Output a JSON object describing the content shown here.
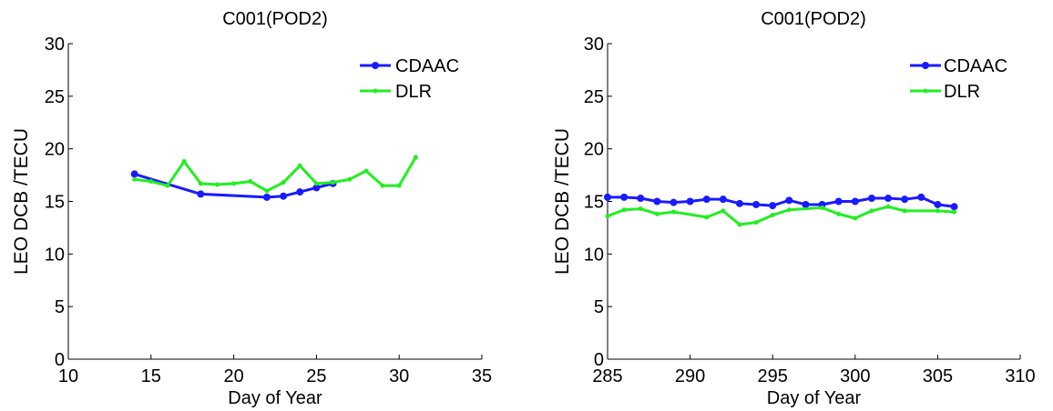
{
  "colors": {
    "cdaac": "#1a1aff",
    "dlr": "#22ee22",
    "axis": "#000000",
    "background": "#ffffff"
  },
  "chart_data": [
    {
      "type": "line",
      "title": "C001(POD2)",
      "xlabel": "Day of Year",
      "ylabel": "LEO DCB /TECU",
      "xlim": [
        10,
        35
      ],
      "ylim": [
        0,
        30
      ],
      "xticks": [
        10,
        15,
        20,
        25,
        30,
        35
      ],
      "yticks": [
        0,
        5,
        10,
        15,
        20,
        25,
        30
      ],
      "grid": false,
      "legend_position": "top-right",
      "series": [
        {
          "name": "CDAAC",
          "color": "#1a1aff",
          "marker": "dot",
          "x": [
            14,
            18,
            22,
            23,
            24,
            25,
            26
          ],
          "y": [
            17.6,
            15.7,
            15.4,
            15.5,
            15.9,
            16.3,
            16.7
          ]
        },
        {
          "name": "DLR",
          "color": "#22ee22",
          "marker": "star",
          "x": [
            14,
            15,
            16,
            17,
            18,
            19,
            20,
            21,
            22,
            23,
            24,
            25,
            26,
            27,
            28,
            29,
            30,
            31
          ],
          "y": [
            17.1,
            16.9,
            16.5,
            18.8,
            16.7,
            16.6,
            16.7,
            16.9,
            16.0,
            16.8,
            18.4,
            16.7,
            16.8,
            17.1,
            17.9,
            16.5,
            16.5,
            19.2
          ]
        }
      ]
    },
    {
      "type": "line",
      "title": "C001(POD2)",
      "xlabel": "Day of Year",
      "ylabel": "LEO DCB /TECU",
      "xlim": [
        285,
        310
      ],
      "ylim": [
        0,
        30
      ],
      "xticks": [
        285,
        290,
        295,
        300,
        305,
        310
      ],
      "yticks": [
        0,
        5,
        10,
        15,
        20,
        25,
        30
      ],
      "grid": false,
      "legend_position": "top-right",
      "series": [
        {
          "name": "CDAAC",
          "color": "#1a1aff",
          "marker": "dot",
          "x": [
            285,
            286,
            287,
            288,
            289,
            290,
            291,
            292,
            293,
            294,
            295,
            296,
            297,
            298,
            299,
            300,
            301,
            302,
            303,
            304,
            305,
            306
          ],
          "y": [
            15.4,
            15.4,
            15.3,
            15.0,
            14.9,
            15.0,
            15.2,
            15.2,
            14.8,
            14.7,
            14.6,
            15.1,
            14.7,
            14.7,
            15.0,
            15.0,
            15.3,
            15.3,
            15.2,
            15.4,
            14.7,
            14.5
          ]
        },
        {
          "name": "DLR",
          "color": "#22ee22",
          "marker": "star",
          "x": [
            285,
            286,
            287,
            288,
            289,
            291,
            292,
            293,
            294,
            295,
            296,
            298,
            299,
            300,
            301,
            302,
            303,
            305,
            306
          ],
          "y": [
            13.6,
            14.2,
            14.3,
            13.8,
            14.0,
            13.5,
            14.1,
            12.8,
            13.0,
            13.7,
            14.2,
            14.4,
            13.8,
            13.4,
            14.1,
            14.5,
            14.1,
            14.1,
            14.0
          ]
        }
      ]
    }
  ]
}
